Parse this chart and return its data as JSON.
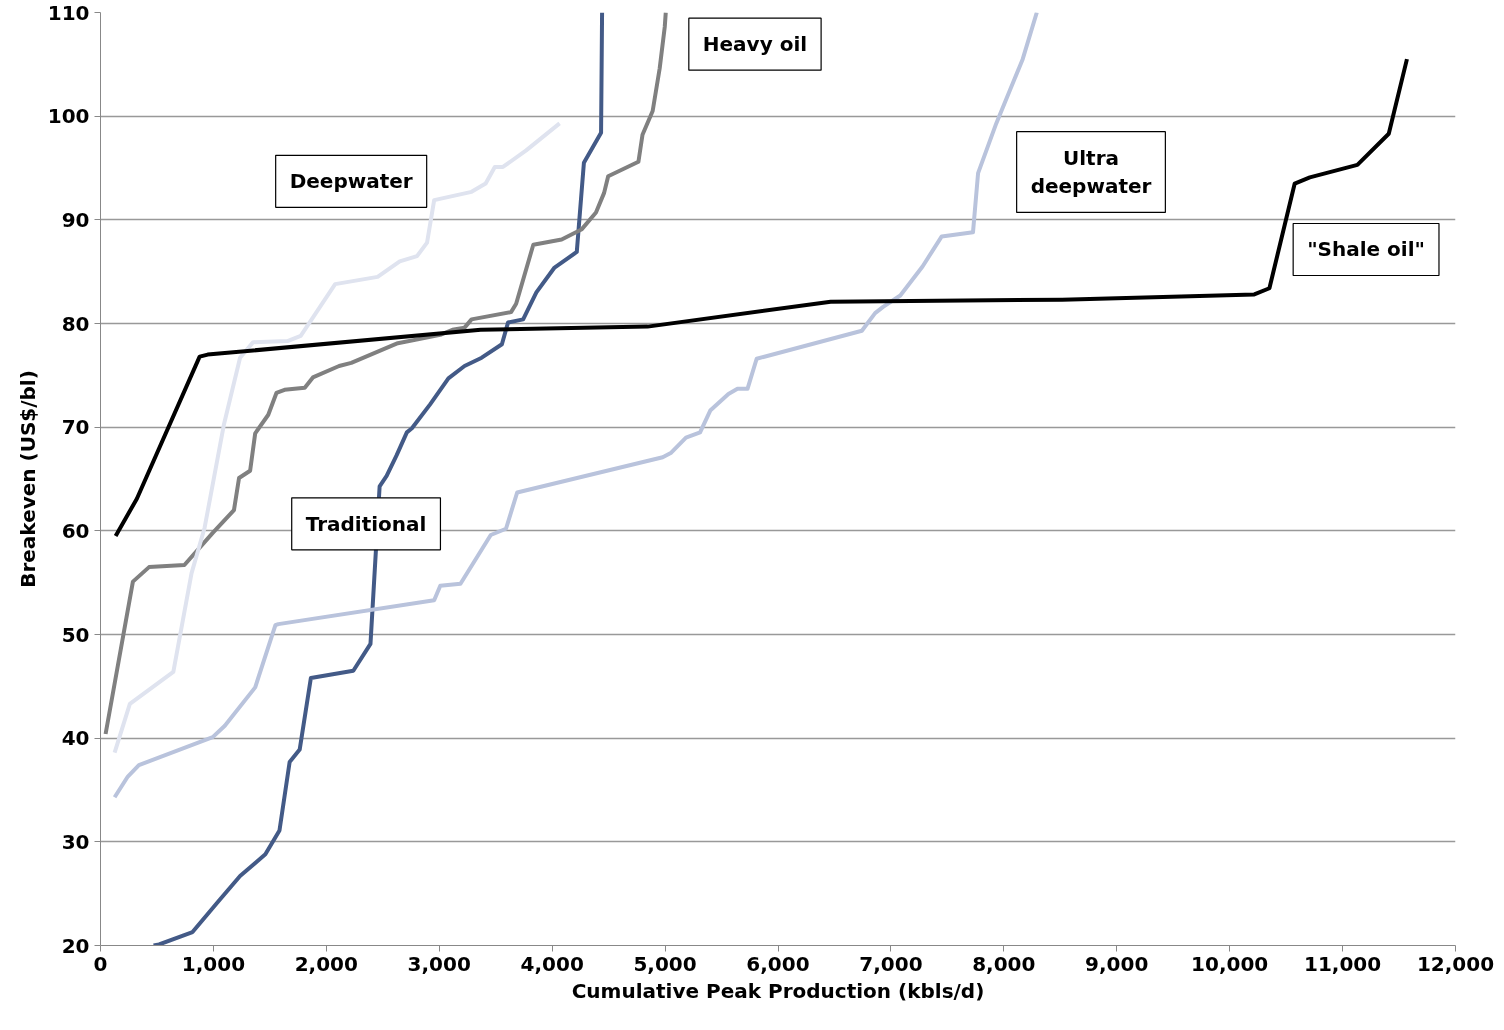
{
  "chart_data": {
    "type": "line",
    "xlabel": "Cumulative Peak Production (kbls/d)",
    "ylabel": "Breakeven (US$/bl)",
    "xlim": [
      0,
      12000
    ],
    "ylim": [
      20,
      110
    ],
    "xticks": [
      0,
      {
        "value": 1000,
        "label": "1,000"
      },
      {
        "value": 2000,
        "label": "2,000"
      },
      {
        "value": 3000,
        "label": "3,000"
      },
      {
        "value": 4000,
        "label": "4,000"
      },
      {
        "value": 5000,
        "label": "5,000"
      },
      {
        "value": 6000,
        "label": "6,000"
      },
      {
        "value": 7000,
        "label": "7,000"
      },
      {
        "value": 8000,
        "label": "8,000"
      },
      {
        "value": 9000,
        "label": "9,000"
      },
      {
        "value": 10000,
        "label": "10,000"
      },
      {
        "value": 11000,
        "label": "11,000"
      },
      {
        "value": 12000,
        "label": "12,000"
      }
    ],
    "yticks": [
      20,
      30,
      40,
      50,
      60,
      70,
      80,
      90,
      100,
      110
    ],
    "grid": "y",
    "legend": false,
    "marker": "none",
    "line_style": "solid",
    "series": [
      {
        "name": "Traditional",
        "color": "#435a87",
        "x": [
          470,
          519,
          815,
          1039,
          1236,
          1460,
          1585,
          1675,
          1764,
          1863,
          2239,
          2391,
          2472,
          2534,
          2623,
          2713,
          2758,
          2919,
          3081,
          3224,
          3376,
          3555,
          3609,
          3743,
          3860,
          4021,
          4218,
          4281,
          4433,
          4442
        ],
        "values": [
          20,
          20.1,
          21.3,
          24.2,
          26.7,
          28.8,
          31.1,
          37.7,
          38.9,
          45.8,
          46.5,
          49.1,
          64.3,
          65.3,
          67.3,
          69.5,
          69.9,
          72.2,
          74.7,
          75.9,
          76.7,
          78.0,
          80.1,
          80.4,
          83.0,
          85.4,
          86.9,
          95.5,
          98.4,
          110
        ]
      },
      {
        "name": "Heavy oil",
        "color": "#808080",
        "x": [
          45,
          287,
          430,
          743,
          994,
          1182,
          1227,
          1325,
          1370,
          1486,
          1558,
          1630,
          1809,
          1881,
          2113,
          2221,
          2633,
          3009,
          3117,
          3224,
          3286,
          3636,
          3681,
          3833,
          4084,
          4263,
          4388,
          4460,
          4496,
          4764,
          4800,
          4890,
          4952,
          4997,
          5006
        ],
        "values": [
          40.4,
          55.1,
          56.5,
          56.7,
          59.8,
          62.0,
          65.1,
          65.8,
          69.4,
          71.2,
          73.3,
          73.6,
          73.8,
          74.8,
          75.9,
          76.2,
          78.1,
          78.9,
          79.4,
          79.6,
          80.4,
          81.1,
          81.9,
          87.6,
          88.1,
          89.1,
          90.7,
          92.6,
          94.2,
          95.6,
          98.2,
          100.5,
          104.6,
          108.6,
          110
        ]
      },
      {
        "name": "Deepwater",
        "color": "#dfe3ef",
        "x": [
          125,
          260,
          645,
          806,
          922,
          1092,
          1236,
          1352,
          1656,
          1773,
          2078,
          2454,
          2650,
          2803,
          2892,
          2955,
          3286,
          3411,
          3492,
          3564,
          3770,
          4066
        ],
        "values": [
          38.6,
          43.3,
          46.4,
          55.9,
          60.3,
          70.2,
          76.7,
          78.2,
          78.3,
          78.8,
          83.8,
          84.5,
          86.0,
          86.5,
          87.8,
          91.9,
          92.7,
          93.5,
          95.1,
          95.1,
          96.7,
          99.3
        ]
      },
      {
        "name": "Ultra deepwater",
        "color": "#b9c3dc",
        "x": [
          125,
          242,
          340,
          994,
          1101,
          1370,
          1549,
          1575,
          2955,
          3009,
          3188,
          3456,
          3591,
          3690,
          4979,
          5050,
          5185,
          5310,
          5400,
          5561,
          5641,
          5730,
          5811,
          6743,
          6860,
          6931,
          7083,
          7280,
          7450,
          7727,
          7772,
          7933,
          8167,
          8292
        ],
        "values": [
          34.3,
          36.3,
          37.4,
          40.1,
          41.2,
          44.9,
          50.9,
          51.0,
          53.3,
          54.7,
          54.9,
          59.6,
          60.2,
          63.7,
          67.1,
          67.5,
          69.0,
          69.5,
          71.6,
          73.2,
          73.7,
          73.7,
          76.6,
          79.3,
          81.0,
          81.6,
          82.7,
          85.5,
          88.4,
          88.8,
          94.5,
          99.3,
          105.5,
          110
        ]
      },
      {
        "name": "\"Shale oil\"",
        "color": "#000000",
        "x": [
          134,
          322,
          878,
          949,
          3367,
          4845,
          6466,
          8516,
          10218,
          10352,
          10576,
          10710,
          11131,
          11409,
          11570
        ],
        "values": [
          59.5,
          63.1,
          76.8,
          77.0,
          79.4,
          79.7,
          82.1,
          82.3,
          82.8,
          83.4,
          93.5,
          94.1,
          95.3,
          98.3,
          105.5
        ]
      }
    ]
  }
}
